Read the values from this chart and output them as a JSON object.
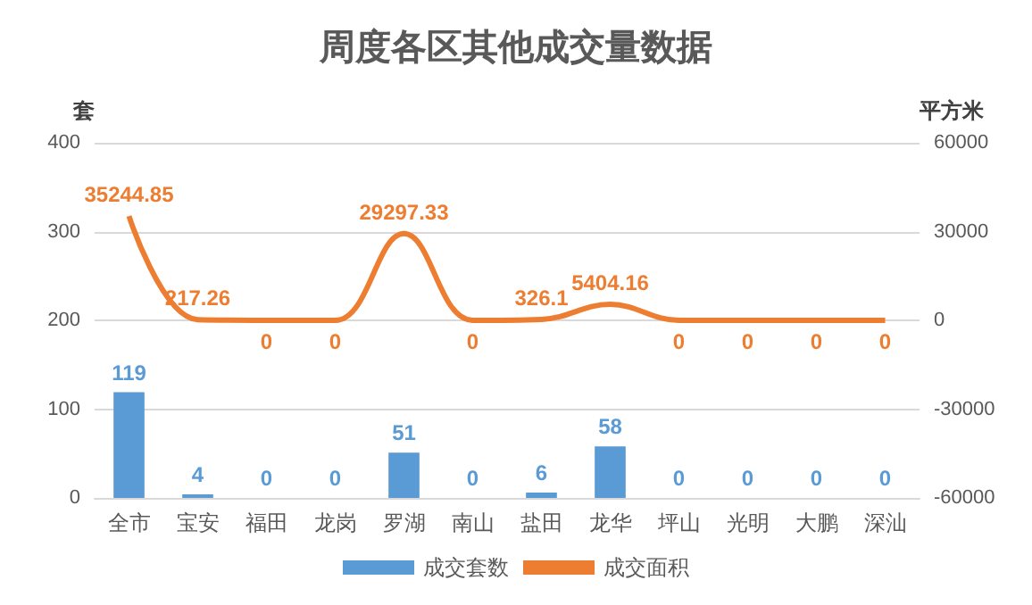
{
  "chart_data": {
    "type": "bar",
    "title": "周度各区其他成交量数据",
    "ylabel": "套",
    "y2label": "平方米",
    "categories": [
      "全市",
      "宝安",
      "福田",
      "龙岗",
      "罗湖",
      "南山",
      "盐田",
      "龙华",
      "坪山",
      "光明",
      "大鹏",
      "深汕"
    ],
    "series": [
      {
        "name": "成交套数",
        "color": "#5b9bd5",
        "values": [
          119,
          4,
          0,
          0,
          51,
          0,
          6,
          58,
          0,
          0,
          0,
          0
        ]
      },
      {
        "name": "成交面积",
        "type": "line",
        "axis": "y2",
        "color": "#ed7d31",
        "values": [
          35244.85,
          217.26,
          0,
          0,
          29297.33,
          0,
          326.1,
          5404.16,
          0,
          0,
          0,
          0
        ]
      }
    ],
    "ylim": [
      0,
      400
    ],
    "yticks": [
      0,
      100,
      200,
      300,
      400
    ],
    "y2lim": [
      -60000,
      60000
    ],
    "y2ticks": [
      -60000,
      -30000,
      0,
      30000,
      60000
    ],
    "grid": "y",
    "legend": "bottom",
    "data_labels": true,
    "marker": "none",
    "line_style": "solid"
  }
}
